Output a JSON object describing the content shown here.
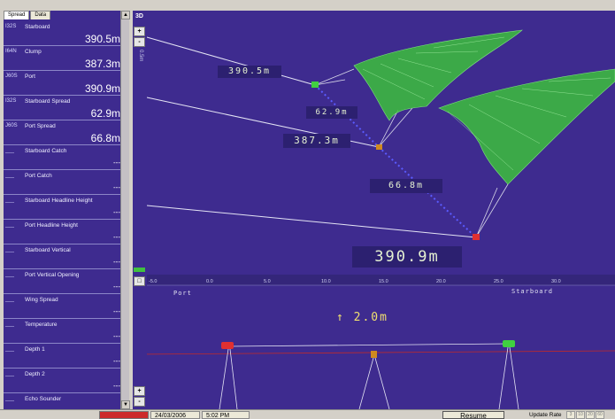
{
  "tabs": [
    "Spread",
    "Data"
  ],
  "sensors": [
    {
      "id": "I32S",
      "label": "Starboard",
      "value": "390.5m"
    },
    {
      "id": "I64N",
      "label": "Clump",
      "value": "387.3m"
    },
    {
      "id": "J60S",
      "label": "Port",
      "value": "390.9m"
    },
    {
      "id": "I32S",
      "label": "Starboard Spread",
      "value": "62.9m"
    },
    {
      "id": "J60S",
      "label": "Port Spread",
      "value": "66.8m"
    },
    {
      "id": "___",
      "label": "Starboard Catch",
      "value": "---"
    },
    {
      "id": "___",
      "label": "Port Catch",
      "value": "---"
    },
    {
      "id": "___",
      "label": "Starboard Headline Height",
      "value": "---"
    },
    {
      "id": "___",
      "label": "Port Headline Height",
      "value": "---"
    },
    {
      "id": "___",
      "label": "Starboard Vertical",
      "value": "---"
    },
    {
      "id": "___",
      "label": "Port Vertical Opening",
      "value": "---"
    },
    {
      "id": "___",
      "label": "Wing Spread",
      "value": "---"
    },
    {
      "id": "___",
      "label": "Temperature",
      "value": "---"
    },
    {
      "id": "___",
      "label": "Depth 1",
      "value": "---"
    },
    {
      "id": "___",
      "label": "Depth 2",
      "value": "---"
    },
    {
      "id": "___",
      "label": "Echo Sounder",
      "value": "---"
    }
  ],
  "toolbar": {
    "view_3d_label": "3D",
    "zoom_in_label": "+",
    "zoom_out_label": "-",
    "square_label": "□",
    "bottom_plus_label": "+",
    "bottom_minus_label": "-",
    "depth_label": "0.5m"
  },
  "main_view": {
    "distance_labels": {
      "starboard": "390.5m",
      "starboard_spread": "62.9m",
      "clump": "387.3m",
      "port_spread": "66.8m",
      "port": "390.9m"
    },
    "scale_ticks": [
      "-5.0",
      "0.0",
      "5.0",
      "10.0",
      "15.0",
      "20.0",
      "25.0",
      "30.0"
    ],
    "port_label": "Port",
    "starboard_label": "Starboard",
    "height_readout": "↑ 2.0m"
  },
  "colors": {
    "background": "#3e2b8f",
    "net": "#3cbf3c",
    "line": "#e0e0f0",
    "dotted": "#5b5bff",
    "sensor_red": "#e03030",
    "sensor_orange": "#d08a20",
    "sensor_green": "#40d040"
  },
  "status_bar": {
    "date": "24/03/2006",
    "time": "5:02 PM",
    "resume_label": "Resume",
    "update_rate_label": "Update Rate",
    "rate_options": [
      "3",
      "10",
      "20",
      "60"
    ]
  }
}
